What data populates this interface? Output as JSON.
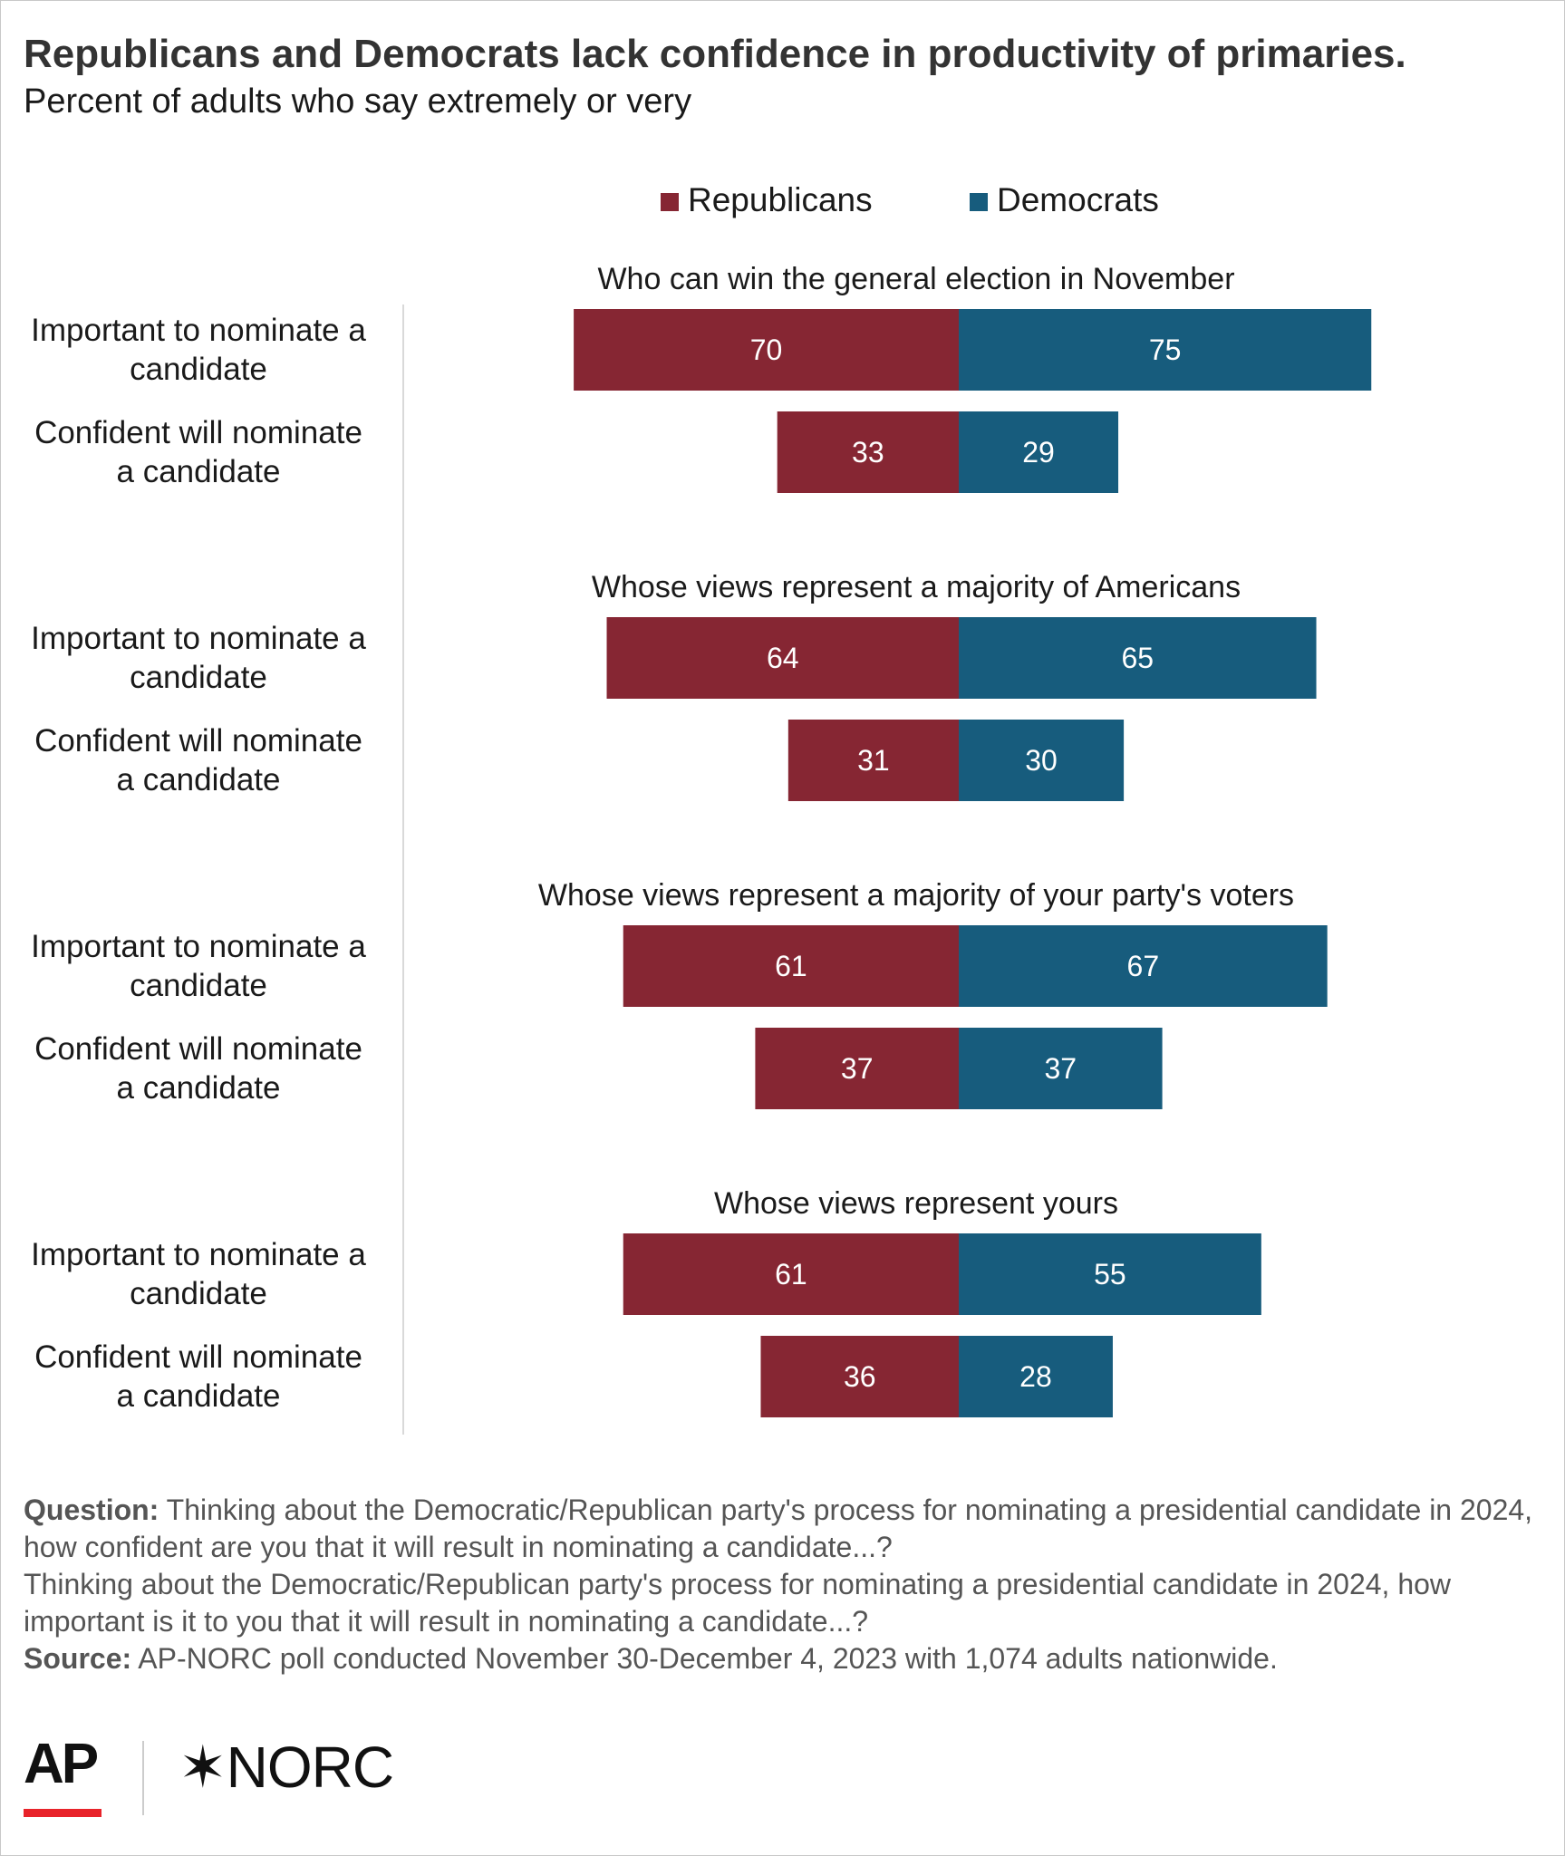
{
  "title": "Republicans and Democrats lack confidence in productivity of primaries.",
  "subtitle": "Percent of adults who say extremely or very",
  "colors": {
    "republicans": "#862633",
    "democrats": "#175c7d",
    "label_text": "#ffffff",
    "axis_line": "#d9d9d9"
  },
  "chart_data": {
    "type": "bar",
    "orientation": "horizontal-diverging",
    "title": "Republicans and Democrats lack confidence in productivity of primaries.",
    "subtitle": "Percent of adults who say extremely or very",
    "legend": {
      "placement": "top-center",
      "entries": [
        "Republicans",
        "Democrats"
      ]
    },
    "grid": false,
    "series_names": [
      "Republicans",
      "Democrats"
    ],
    "groups": [
      {
        "title": "Who can win the general election in November",
        "rows": [
          {
            "label": "Important to nominate a candidate",
            "republicans": 70,
            "democrats": 75
          },
          {
            "label": "Confident will nominate a candidate",
            "republicans": 33,
            "democrats": 29
          }
        ]
      },
      {
        "title": "Whose views represent a majority of Americans",
        "rows": [
          {
            "label": "Important to nominate a candidate",
            "republicans": 64,
            "democrats": 65
          },
          {
            "label": "Confident will nominate a candidate",
            "republicans": 31,
            "democrats": 30
          }
        ]
      },
      {
        "title": "Whose views represent a majority of your party's voters",
        "rows": [
          {
            "label": "Important to nominate a candidate",
            "republicans": 61,
            "democrats": 67
          },
          {
            "label": "Confident will nominate a candidate",
            "republicans": 37,
            "democrats": 37
          }
        ]
      },
      {
        "title": "Whose views represent yours",
        "rows": [
          {
            "label": "Important to nominate a candidate",
            "republicans": 61,
            "democrats": 55
          },
          {
            "label": "Confident will nominate a candidate",
            "republicans": 36,
            "democrats": 28
          }
        ]
      }
    ]
  },
  "row_label_lines": {
    "important": [
      "Important to nominate a",
      "candidate"
    ],
    "confident": [
      "Confident will nominate",
      "a candidate"
    ]
  },
  "notes": {
    "question_label": "Question:",
    "question_text_1": "Thinking about the Democratic/Republican party's process for nominating a presidential candidate in 2024, how confident are you that it will result in nominating a candidate...?",
    "question_text_2": "Thinking about the Democratic/Republican party's process for nominating a presidential candidate in 2024, how important is it to you that it will result in nominating a candidate...?",
    "source_label": "Source:",
    "source_text": "AP-NORC poll conducted November 30-December 4, 2023 with 1,074 adults nationwide."
  },
  "logos": {
    "ap": "AP",
    "norc_mark": "✶",
    "norc": "NORC"
  }
}
